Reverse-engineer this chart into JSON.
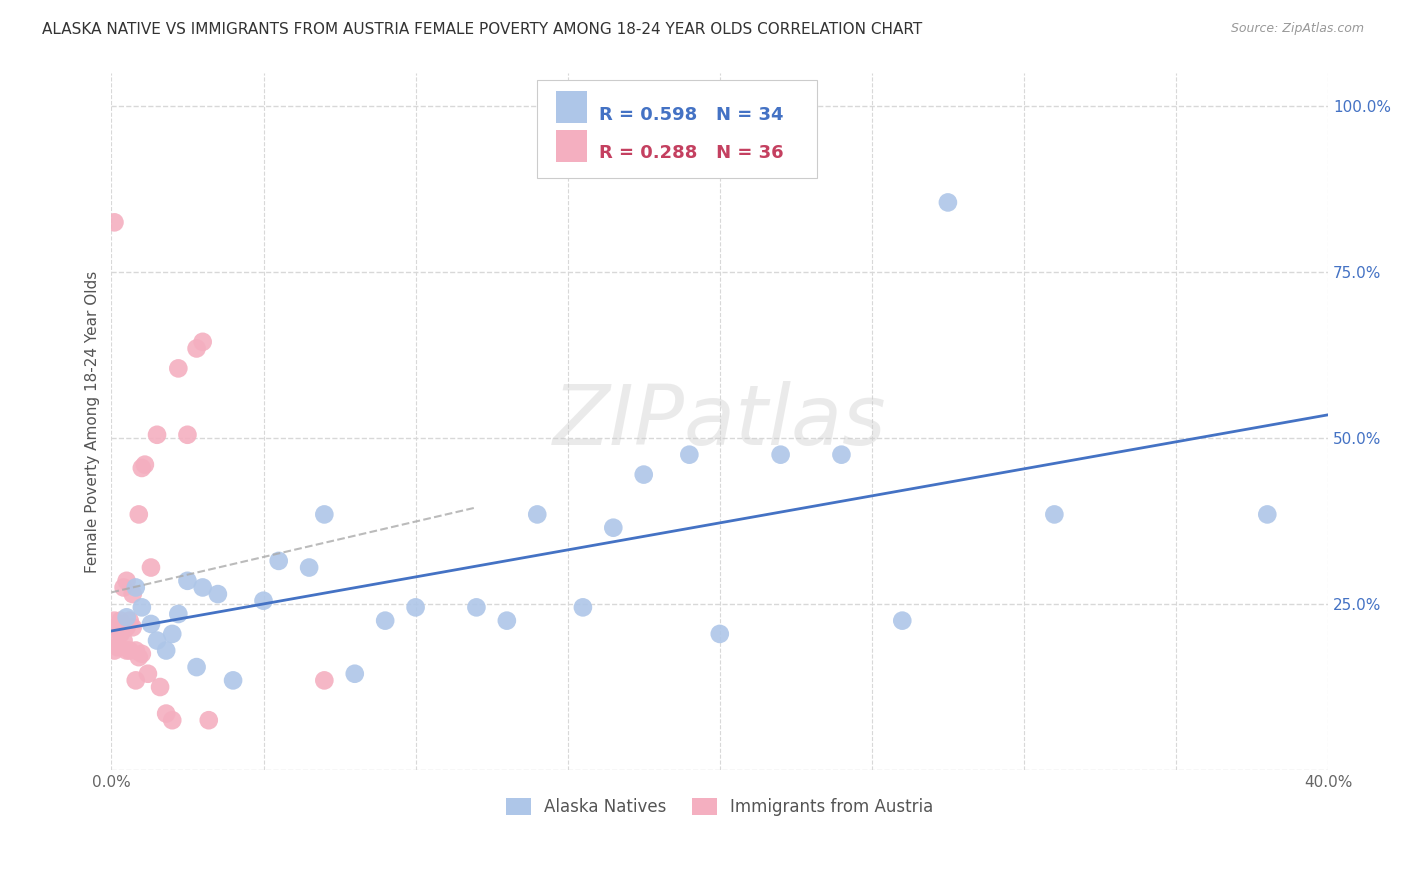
{
  "title": "ALASKA NATIVE VS IMMIGRANTS FROM AUSTRIA FEMALE POVERTY AMONG 18-24 YEAR OLDS CORRELATION CHART",
  "source": "Source: ZipAtlas.com",
  "ylabel": "Female Poverty Among 18-24 Year Olds",
  "xlim": [
    0.0,
    0.4
  ],
  "ylim": [
    0.0,
    1.05
  ],
  "x_ticks": [
    0.0,
    0.05,
    0.1,
    0.15,
    0.2,
    0.25,
    0.3,
    0.35,
    0.4
  ],
  "y_ticks": [
    0.0,
    0.25,
    0.5,
    0.75,
    1.0
  ],
  "alaska_native_R": 0.598,
  "alaska_native_N": 34,
  "austria_R": 0.288,
  "austria_N": 36,
  "alaska_native_color": "#aec6e8",
  "austria_color": "#f4afc0",
  "alaska_native_line_color": "#4472c4",
  "austria_line_color": "#c44060",
  "alaska_native_x": [
    0.005,
    0.008,
    0.01,
    0.013,
    0.015,
    0.018,
    0.02,
    0.022,
    0.025,
    0.028,
    0.03,
    0.035,
    0.04,
    0.05,
    0.055,
    0.065,
    0.07,
    0.08,
    0.09,
    0.1,
    0.12,
    0.13,
    0.14,
    0.155,
    0.165,
    0.175,
    0.19,
    0.2,
    0.22,
    0.24,
    0.26,
    0.275,
    0.31,
    0.38
  ],
  "alaska_native_y": [
    0.23,
    0.275,
    0.245,
    0.22,
    0.195,
    0.18,
    0.205,
    0.235,
    0.285,
    0.155,
    0.275,
    0.265,
    0.135,
    0.255,
    0.315,
    0.305,
    0.385,
    0.145,
    0.225,
    0.245,
    0.245,
    0.225,
    0.385,
    0.245,
    0.365,
    0.445,
    0.475,
    0.205,
    0.475,
    0.475,
    0.225,
    0.855,
    0.385,
    0.385
  ],
  "austria_x": [
    0.001,
    0.001,
    0.001,
    0.002,
    0.002,
    0.003,
    0.003,
    0.004,
    0.004,
    0.005,
    0.005,
    0.005,
    0.006,
    0.006,
    0.007,
    0.007,
    0.008,
    0.008,
    0.009,
    0.009,
    0.01,
    0.01,
    0.011,
    0.012,
    0.013,
    0.015,
    0.016,
    0.018,
    0.02,
    0.022,
    0.025,
    0.028,
    0.03,
    0.032,
    0.07,
    0.001
  ],
  "austria_y": [
    0.225,
    0.195,
    0.18,
    0.215,
    0.185,
    0.205,
    0.225,
    0.275,
    0.195,
    0.285,
    0.215,
    0.18,
    0.225,
    0.18,
    0.265,
    0.215,
    0.135,
    0.18,
    0.385,
    0.17,
    0.175,
    0.455,
    0.46,
    0.145,
    0.305,
    0.505,
    0.125,
    0.085,
    0.075,
    0.605,
    0.505,
    0.635,
    0.645,
    0.075,
    0.135,
    0.825
  ],
  "watermark": "ZIPatlas",
  "background_color": "#ffffff",
  "grid_color": "#d8d8d8"
}
